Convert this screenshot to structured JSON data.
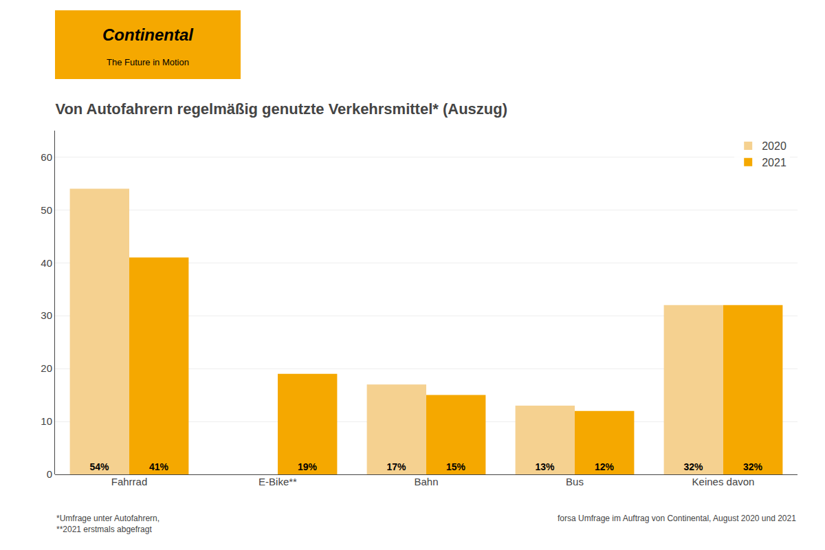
{
  "chart_data": {
    "type": "bar",
    "title": "Von Autofahrern regelmäßig genutzte Verkehrsmittel* (Auszug)",
    "categories": [
      "Fahrrad",
      "E-Bike**",
      "Bahn",
      "Bus",
      "Keines davon"
    ],
    "series": [
      {
        "name": "2020",
        "color": "#F5D190",
        "values": [
          54,
          null,
          17,
          13,
          32
        ],
        "value_labels": [
          "54%",
          null,
          "17%",
          "13%",
          "32%"
        ]
      },
      {
        "name": "2021",
        "color": "#F5A800",
        "values": [
          41,
          19,
          15,
          12,
          32
        ],
        "value_labels": [
          "41%",
          "19%",
          "15%",
          "12%",
          "32%"
        ]
      }
    ],
    "ylim": [
      0,
      65
    ],
    "yticks": [
      0,
      10,
      20,
      30,
      40,
      50,
      60
    ],
    "grid": true,
    "legend": "upper right",
    "data_labels": true,
    "annotations": [
      "*Umfrage unter Autofahrern,\n**2021 erstmals abgefragt",
      "forsa Umfrage im Auftrag von Continental, August 2020 und 2021",
      "Continental",
      "The Future in Motion"
    ]
  }
}
